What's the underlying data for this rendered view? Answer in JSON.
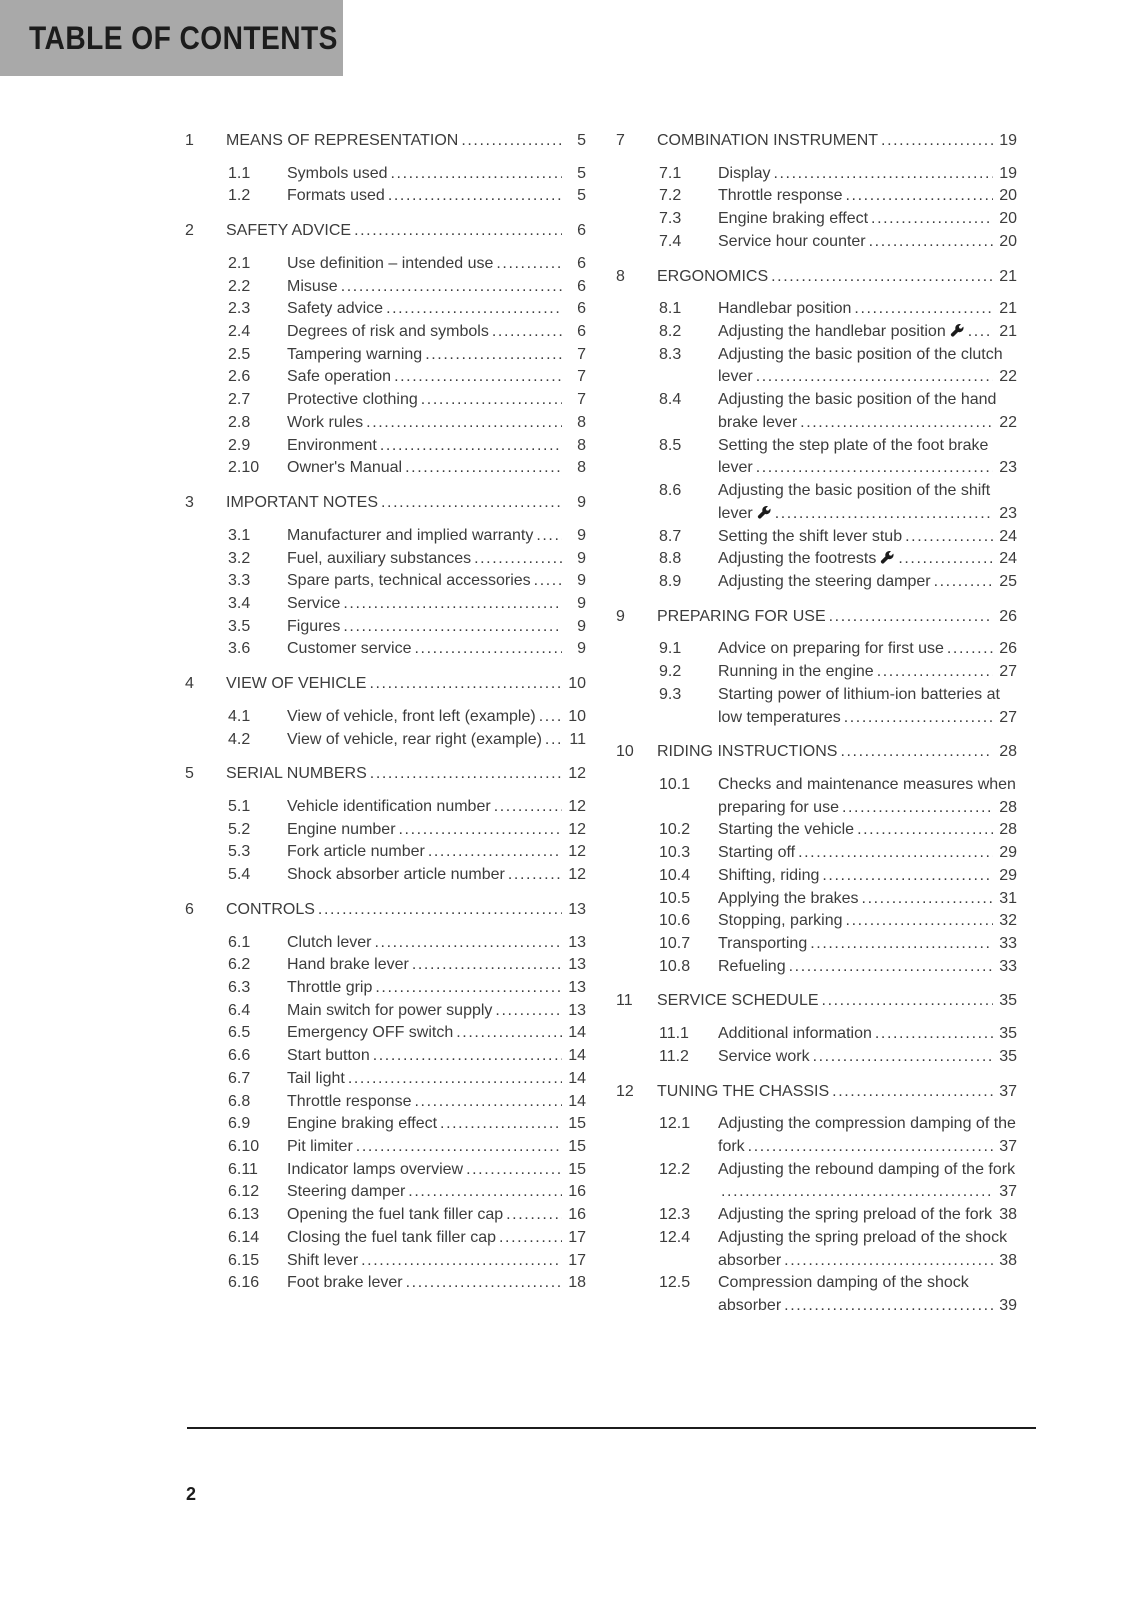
{
  "header": {
    "title": "TABLE OF CONTENTS"
  },
  "footer": {
    "page_number": "2"
  },
  "colors": {
    "header_bg": "#a9a9a9",
    "body_text": "#3c3c3c",
    "heading_text": "#1c1c1c"
  },
  "icons": {
    "wrench": "wrench-icon"
  },
  "columns": [
    {
      "side": "left",
      "sections": [
        {
          "num": "1",
          "title": "MEANS OF REPRESENTATION",
          "page": "5",
          "entries": [
            {
              "num": "1.1",
              "title": "Symbols used",
              "page": "5"
            },
            {
              "num": "1.2",
              "title": "Formats used",
              "page": "5"
            }
          ]
        },
        {
          "num": "2",
          "title": "SAFETY ADVICE",
          "page": "6",
          "entries": [
            {
              "num": "2.1",
              "title": "Use definition – intended use",
              "page": "6"
            },
            {
              "num": "2.2",
              "title": "Misuse",
              "page": "6"
            },
            {
              "num": "2.3",
              "title": "Safety advice",
              "page": "6"
            },
            {
              "num": "2.4",
              "title": "Degrees of risk and symbols",
              "page": "6"
            },
            {
              "num": "2.5",
              "title": "Tampering warning",
              "page": "7"
            },
            {
              "num": "2.6",
              "title": "Safe operation",
              "page": "7"
            },
            {
              "num": "2.7",
              "title": "Protective clothing",
              "page": "7"
            },
            {
              "num": "2.8",
              "title": "Work rules",
              "page": "8"
            },
            {
              "num": "2.9",
              "title": "Environment",
              "page": "8"
            },
            {
              "num": "2.10",
              "title": "Owner's Manual",
              "page": "8"
            }
          ]
        },
        {
          "num": "3",
          "title": "IMPORTANT NOTES",
          "page": "9",
          "entries": [
            {
              "num": "3.1",
              "title": "Manufacturer and implied warranty",
              "page": "9"
            },
            {
              "num": "3.2",
              "title": "Fuel, auxiliary substances",
              "page": "9"
            },
            {
              "num": "3.3",
              "title": "Spare parts, technical accessories",
              "page": "9"
            },
            {
              "num": "3.4",
              "title": "Service",
              "page": "9"
            },
            {
              "num": "3.5",
              "title": "Figures",
              "page": "9"
            },
            {
              "num": "3.6",
              "title": "Customer service",
              "page": "9"
            }
          ]
        },
        {
          "num": "4",
          "title": "VIEW OF VEHICLE",
          "page": "10",
          "entries": [
            {
              "num": "4.1",
              "title": "View of vehicle, front left (example)",
              "page": "10"
            },
            {
              "num": "4.2",
              "title": "View of vehicle, rear right (example)",
              "page": "11"
            }
          ]
        },
        {
          "num": "5",
          "title": "SERIAL NUMBERS",
          "page": "12",
          "entries": [
            {
              "num": "5.1",
              "title": "Vehicle identification number",
              "page": "12"
            },
            {
              "num": "5.2",
              "title": "Engine number",
              "page": "12"
            },
            {
              "num": "5.3",
              "title": "Fork article number",
              "page": "12"
            },
            {
              "num": "5.4",
              "title": "Shock absorber article number",
              "page": "12"
            }
          ]
        },
        {
          "num": "6",
          "title": "CONTROLS",
          "page": "13",
          "entries": [
            {
              "num": "6.1",
              "title": "Clutch lever",
              "page": "13"
            },
            {
              "num": "6.2",
              "title": "Hand brake lever",
              "page": "13"
            },
            {
              "num": "6.3",
              "title": "Throttle grip",
              "page": "13"
            },
            {
              "num": "6.4",
              "title": "Main switch for power supply",
              "page": "13"
            },
            {
              "num": "6.5",
              "title": "Emergency OFF switch",
              "page": "14"
            },
            {
              "num": "6.6",
              "title": "Start button",
              "page": "14"
            },
            {
              "num": "6.7",
              "title": "Tail light",
              "page": "14"
            },
            {
              "num": "6.8",
              "title": "Throttle response",
              "page": "14"
            },
            {
              "num": "6.9",
              "title": "Engine braking effect",
              "page": "15"
            },
            {
              "num": "6.10",
              "title": "Pit limiter",
              "page": "15"
            },
            {
              "num": "6.11",
              "title": "Indicator lamps overview",
              "page": "15"
            },
            {
              "num": "6.12",
              "title": "Steering damper",
              "page": "16"
            },
            {
              "num": "6.13",
              "title": "Opening the fuel tank filler cap",
              "page": "16"
            },
            {
              "num": "6.14",
              "title": "Closing the fuel tank filler cap",
              "page": "17"
            },
            {
              "num": "6.15",
              "title": "Shift lever",
              "page": "17"
            },
            {
              "num": "6.16",
              "title": "Foot brake lever",
              "page": "18"
            }
          ]
        }
      ]
    },
    {
      "side": "right",
      "sections": [
        {
          "num": "7",
          "title": "COMBINATION INSTRUMENT",
          "page": "19",
          "entries": [
            {
              "num": "7.1",
              "title": "Display",
              "page": "19"
            },
            {
              "num": "7.2",
              "title": "Throttle response",
              "page": "20"
            },
            {
              "num": "7.3",
              "title": "Engine braking effect",
              "page": "20"
            },
            {
              "num": "7.4",
              "title": "Service hour counter",
              "page": "20"
            }
          ]
        },
        {
          "num": "8",
          "title": "ERGONOMICS",
          "page": "21",
          "entries": [
            {
              "num": "8.1",
              "title": "Handlebar position",
              "page": "21"
            },
            {
              "num": "8.2",
              "title": "Adjusting the handlebar position",
              "wrench": true,
              "page": "21"
            },
            {
              "num": "8.3",
              "title": "Adjusting the basic position of the clutch lever",
              "page": "22"
            },
            {
              "num": "8.4",
              "title": "Adjusting the basic position of the hand brake lever",
              "page": "22"
            },
            {
              "num": "8.5",
              "title": "Setting the step plate of the foot brake lever",
              "page": "23"
            },
            {
              "num": "8.6",
              "title": "Adjusting the basic position of the shift lever",
              "wrench": true,
              "page": "23"
            },
            {
              "num": "8.7",
              "title": "Setting the shift lever stub",
              "page": "24"
            },
            {
              "num": "8.8",
              "title": "Adjusting the footrests",
              "wrench": true,
              "page": "24"
            },
            {
              "num": "8.9",
              "title": "Adjusting the steering damper",
              "page": "25"
            }
          ]
        },
        {
          "num": "9",
          "title": "PREPARING FOR USE",
          "page": "26",
          "entries": [
            {
              "num": "9.1",
              "title": "Advice on preparing for first use",
              "page": "26"
            },
            {
              "num": "9.2",
              "title": "Running in the engine",
              "page": "27"
            },
            {
              "num": "9.3",
              "title": "Starting power of lithium-ion batteries at low temperatures",
              "page": "27"
            }
          ]
        },
        {
          "num": "10",
          "title": "RIDING INSTRUCTIONS",
          "page": "28",
          "entries": [
            {
              "num": "10.1",
              "title": "Checks and maintenance measures when preparing for use",
              "page": "28"
            },
            {
              "num": "10.2",
              "title": "Starting the vehicle",
              "page": "28"
            },
            {
              "num": "10.3",
              "title": "Starting off",
              "page": "29"
            },
            {
              "num": "10.4",
              "title": "Shifting, riding",
              "page": "29"
            },
            {
              "num": "10.5",
              "title": "Applying the brakes",
              "page": "31"
            },
            {
              "num": "10.6",
              "title": "Stopping, parking",
              "page": "32"
            },
            {
              "num": "10.7",
              "title": "Transporting",
              "page": "33"
            },
            {
              "num": "10.8",
              "title": "Refueling",
              "page": "33"
            }
          ]
        },
        {
          "num": "11",
          "title": "SERVICE SCHEDULE",
          "page": "35",
          "entries": [
            {
              "num": "11.1",
              "title": "Additional information",
              "page": "35"
            },
            {
              "num": "11.2",
              "title": "Service work",
              "page": "35"
            }
          ]
        },
        {
          "num": "12",
          "title": "TUNING THE CHASSIS",
          "page": "37",
          "entries": [
            {
              "num": "12.1",
              "title": "Adjusting the compression damping of the fork",
              "page": "37"
            },
            {
              "num": "12.2",
              "title": "Adjusting the rebound damping of the fork",
              "page": "37"
            },
            {
              "num": "12.3",
              "title": "Adjusting the spring preload of the fork",
              "page": "38"
            },
            {
              "num": "12.4",
              "title": "Adjusting the spring preload of the shock absorber",
              "page": "38"
            },
            {
              "num": "12.5",
              "title": "Compression damping of the shock absorber",
              "page": "39"
            }
          ]
        }
      ]
    }
  ]
}
